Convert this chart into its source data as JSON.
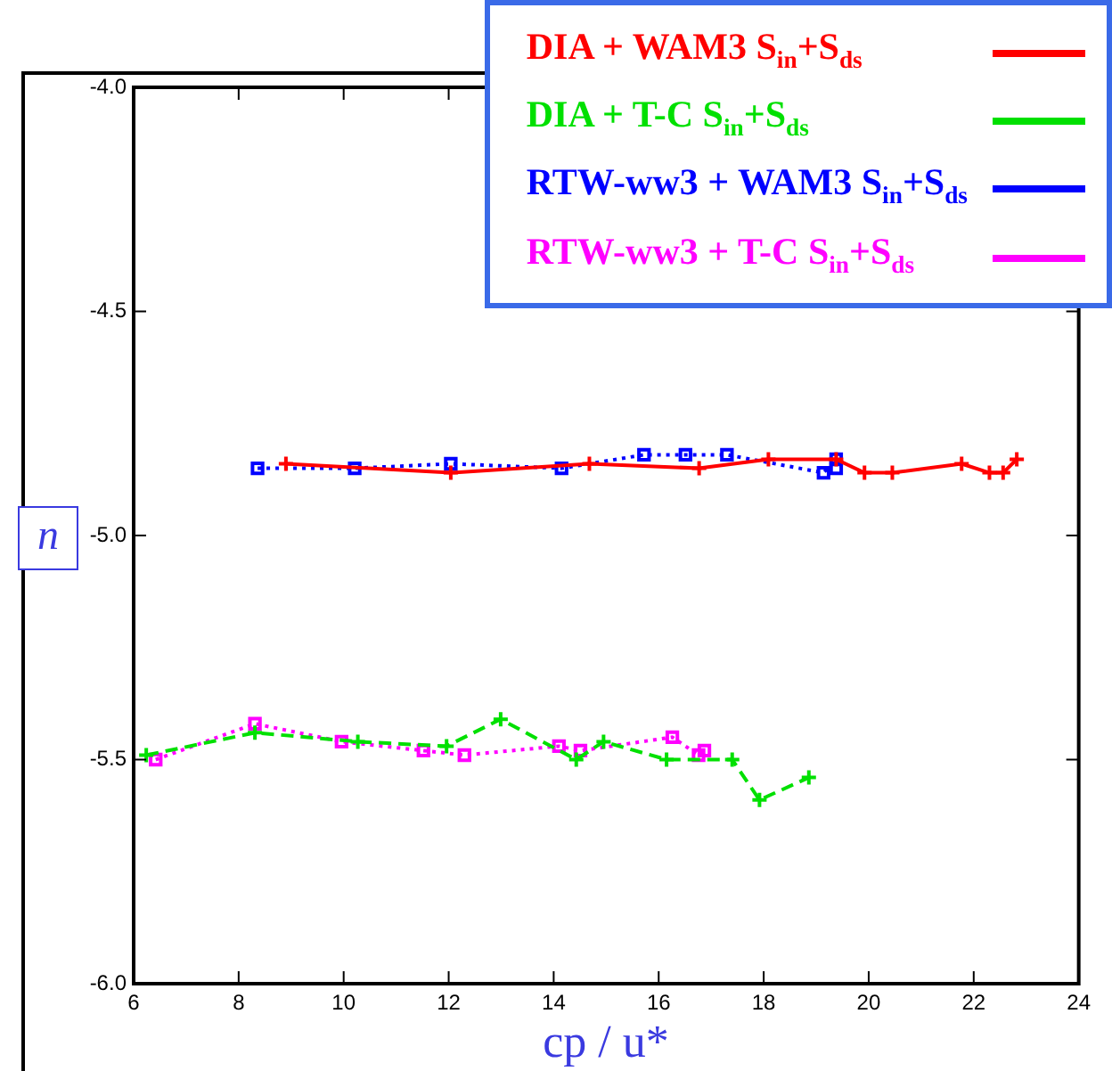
{
  "chart_data": {
    "type": "line",
    "xlabel": "cp / u*",
    "ylabel": "n",
    "legend": "top right",
    "grid": false,
    "xlim": [
      6,
      24
    ],
    "xticks": [
      6,
      8,
      10,
      12,
      14,
      16,
      18,
      20,
      22,
      24
    ],
    "ylim": [
      -6,
      -4
    ],
    "yticks": [
      {
        "value": -6,
        "label": "-6.0"
      },
      {
        "value": -5.5,
        "label": "-5.5"
      },
      {
        "value": -5,
        "label": "-5.0"
      },
      {
        "value": -4.5,
        "label": "-4.5"
      },
      {
        "value": -4,
        "label": "-4.0"
      }
    ],
    "series": [
      {
        "name": "DIA + WAM3 S$_{in}$+S$_{ds}$",
        "color": "#ff0000",
        "marker": "cross",
        "line_style": "solid",
        "x": [
          8.9,
          12.04,
          14.68,
          16.77,
          18.09,
          19.38,
          19.92,
          20.45,
          21.77,
          22.3,
          22.56,
          22.82
        ],
        "values": [
          -4.84,
          -4.86,
          -4.84,
          -4.85,
          -4.83,
          -4.83,
          -4.86,
          -4.86,
          -4.84,
          -4.86,
          -4.86,
          -4.83
        ]
      },
      {
        "name": "DIA + T-C S$_{in}$+S$_{ds}$",
        "color": "#00e000",
        "marker": "cross",
        "line_style": "dashed",
        "x": [
          6.24,
          8.31,
          10.27,
          11.96,
          12.99,
          14.43,
          14.95,
          16.15,
          17.4,
          17.92,
          18.86
        ],
        "values": [
          -5.49,
          -5.44,
          -5.46,
          -5.47,
          -5.41,
          -5.5,
          -5.46,
          -5.5,
          -5.5,
          -5.59,
          -5.54
        ]
      },
      {
        "name": "RTW-ww3 + WAM3 S$_{in}$+S$_{ds}$",
        "color": "#0000ff",
        "marker": "square",
        "line_style": "dotted",
        "x": [
          8.36,
          10.21,
          12.04,
          14.15,
          15.72,
          16.51,
          17.3,
          19.14,
          19.38,
          19.38
        ],
        "values": [
          -4.85,
          -4.85,
          -4.84,
          -4.85,
          -4.82,
          -4.82,
          -4.82,
          -4.86,
          -4.83,
          -4.85
        ]
      },
      {
        "name": "RTW-ww3 + T-C S$_{in}$+S$_{ds}$",
        "color": "#ff00ff",
        "marker": "square",
        "line_style": "dotted",
        "x": [
          6.42,
          8.31,
          9.96,
          11.52,
          12.3,
          14.1,
          14.51,
          16.26,
          16.76,
          16.87
        ],
        "values": [
          -5.5,
          -5.42,
          -5.46,
          -5.48,
          -5.49,
          -5.47,
          -5.48,
          -5.45,
          -5.49,
          -5.48
        ]
      }
    ]
  }
}
